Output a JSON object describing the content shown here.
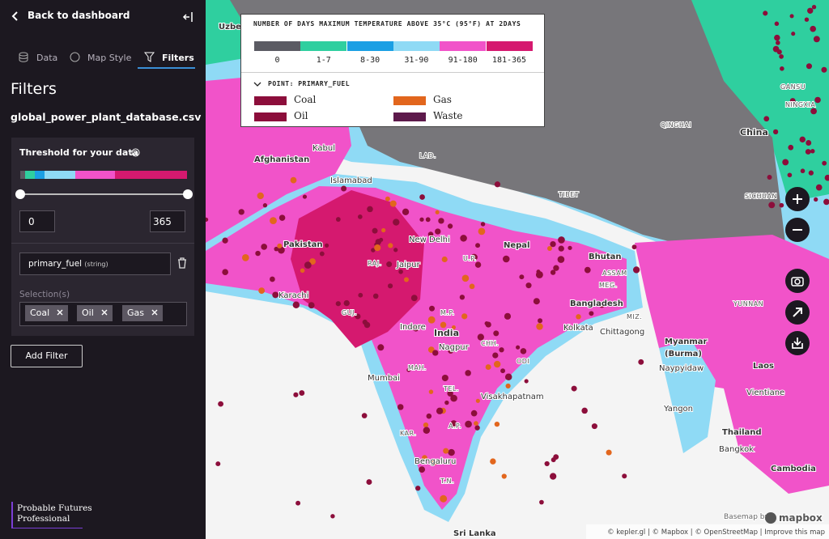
{
  "sidebar": {
    "back": "Back to dashboard",
    "tabs": [
      "Data",
      "Map Style",
      "Filters"
    ],
    "heading": "Filters",
    "dataset": "global_power_plant_database.csv",
    "threshold_title": "Threshold for your data",
    "min": "0",
    "max": "365",
    "field": "primary_fuel",
    "field_type": "(string)",
    "selection_label": "Selection(s)",
    "chips": [
      "Coal",
      "Oil",
      "Gas"
    ],
    "add_filter": "Add Filter",
    "brand": [
      "Probable Futures",
      "Professional"
    ]
  },
  "legend": {
    "title": "NUMBER OF DAYS MAXIMUM TEMPERATURE ABOVE 35°C (95°F) AT 2DAYS",
    "bins": [
      {
        "label": "0",
        "color": "#5b5b63"
      },
      {
        "label": "1-7",
        "color": "#2fcf9f"
      },
      {
        "label": "8-30",
        "color": "#1b9fe4"
      },
      {
        "label": "31-90",
        "color": "#8fdaf5"
      },
      {
        "label": "91-180",
        "color": "#f153c9"
      },
      {
        "label": "181-365",
        "color": "#d5196f"
      }
    ],
    "point_title": "POINT: PRIMARY_FUEL",
    "fuels": [
      {
        "label": "Coal",
        "color": "#8c0e3b"
      },
      {
        "label": "Gas",
        "color": "#e2661d"
      },
      {
        "label": "Oil",
        "color": "#8c0e3b"
      },
      {
        "label": "Waste",
        "color": "#5d1a4b"
      }
    ]
  },
  "map": {
    "labels": [
      "Afghanistan",
      "Pakistan",
      "India",
      "Nepal",
      "Bhutan",
      "Bangladesh",
      "Myanmar",
      "(Burma)",
      "China",
      "Laos",
      "Thailand",
      "Cambodia",
      "Sri Lanka",
      "Jaipur",
      "Indore",
      "Mumbai",
      "Bengaluru",
      "Visakhapatnam",
      "Kolkata",
      "Chittagong",
      "Naypyidaw",
      "Yangon",
      "Bangkok",
      "Vientiane",
      "Islamabad",
      "Kabul",
      "New Delhi",
      "Karachi",
      "TIBET",
      "QINGHAI",
      "SICHUAN",
      "GANSU",
      "NINGXIA",
      "YUNNAN",
      "ASSAM",
      "RAJ.",
      "GUJ.",
      "M.P.",
      "MAH.",
      "U.P.",
      "TEL.",
      "A.P.",
      "KAR.",
      "T.N.",
      "CHH.",
      "ODI",
      "MIZ.",
      "MEG.",
      "LAD.",
      "Uzbe",
      "Nagpur"
    ],
    "attribution": "© kepler.gl | © Mapbox | © OpenStreetMap | Improve this map",
    "basemap_by": "Basemap by:",
    "logo": "mapbox"
  }
}
